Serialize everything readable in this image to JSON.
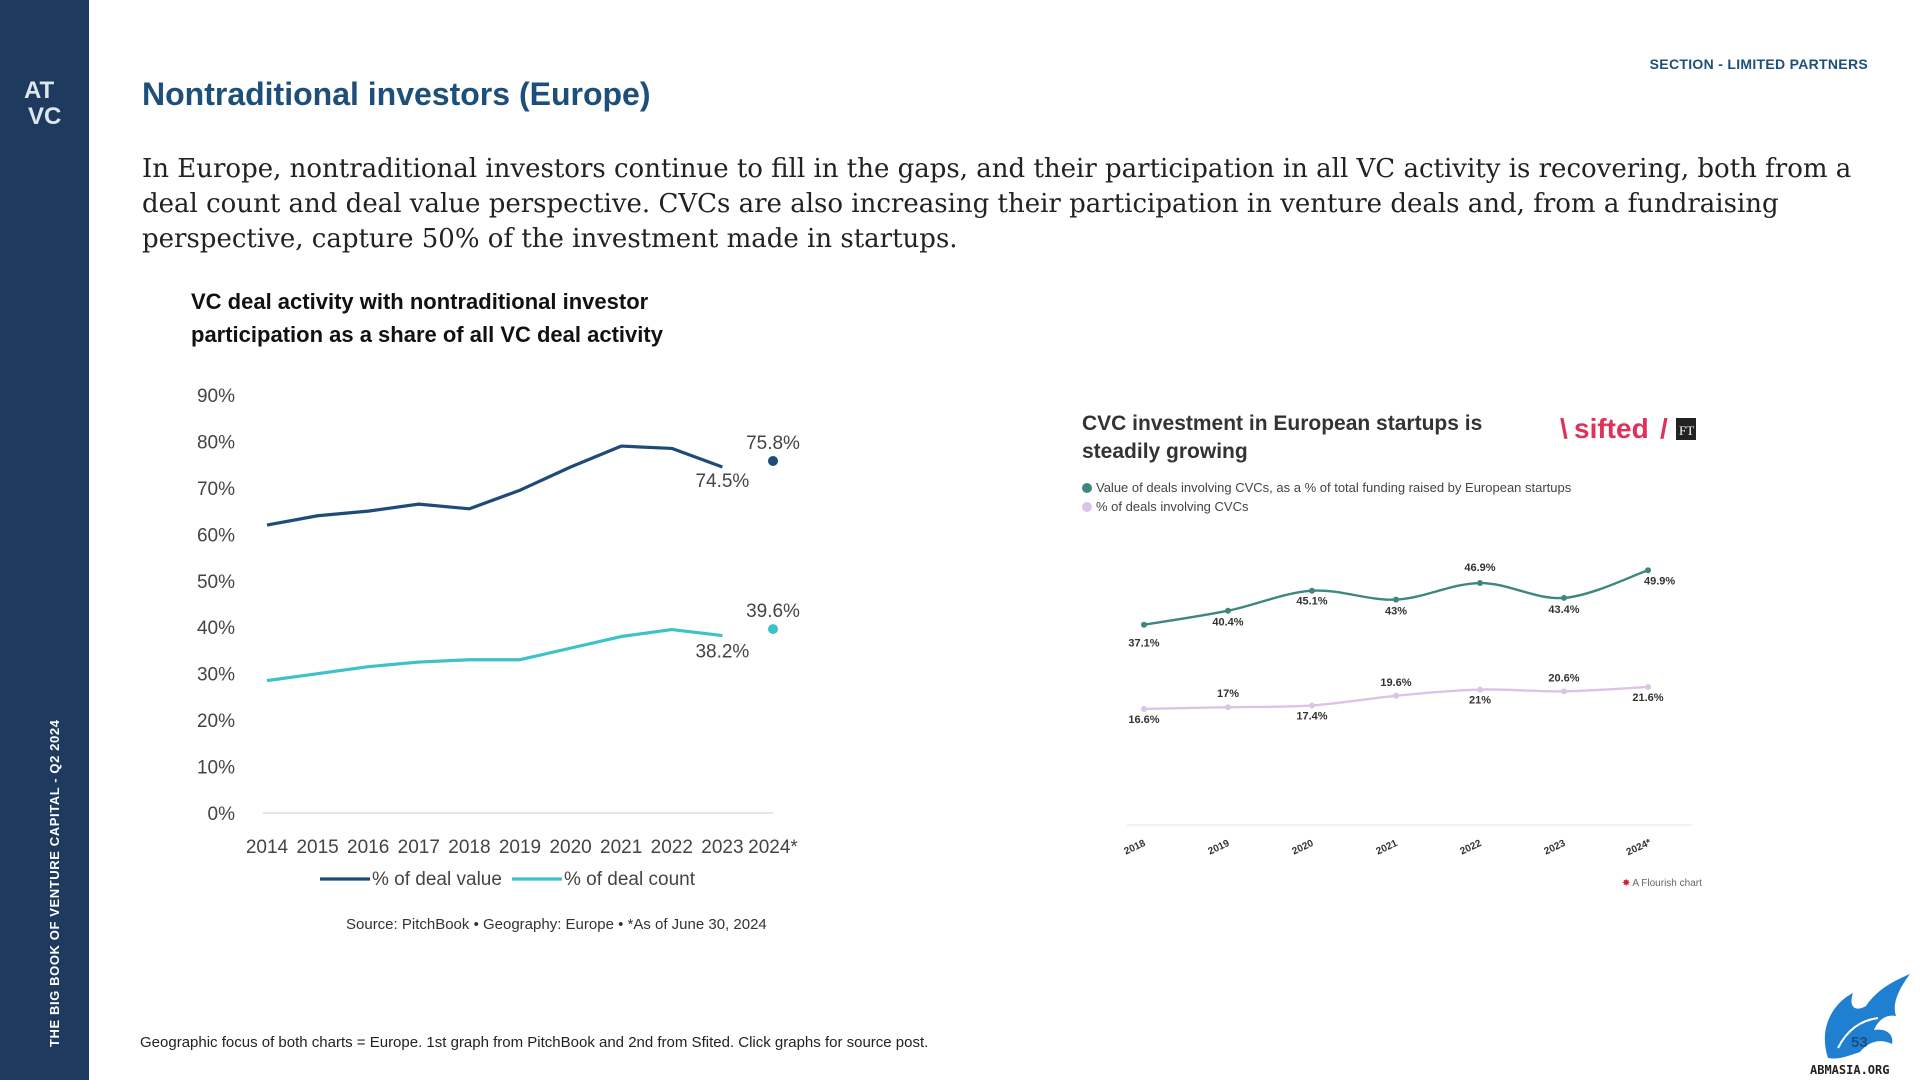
{
  "sidebar": {
    "logo_text": "ATVC",
    "vertical_text": "THE BIG BOOK OF VENTURE CAPITAL - Q2 2024"
  },
  "header": {
    "section_label": "SECTION - LIMITED PARTNERS",
    "title": "Nontraditional investors (Europe)"
  },
  "intro": "In Europe, nontraditional investors continue to fill in the gaps, and their participation in all VC activity is recovering, both from a deal count and deal value perspective. CVCs are also increasing their participation in venture deals and, from a fundraising perspective, capture 50% of the investment made in startups.",
  "colors": {
    "accent": "#1d4f7a",
    "sidebar": "#1e3a5f",
    "deal_value": "#1e4b78",
    "deal_count": "#3dc2c9",
    "cvc_value": "#3f8580",
    "cvc_count": "#dcc3e8"
  },
  "chart_data": [
    {
      "type": "line",
      "title": "VC deal activity with nontraditional investor participation as a share of all VC deal activity",
      "categories": [
        "2014",
        "2015",
        "2016",
        "2017",
        "2018",
        "2019",
        "2020",
        "2021",
        "2022",
        "2023",
        "2024*"
      ],
      "yticks": [
        "0%",
        "10%",
        "20%",
        "30%",
        "40%",
        "50%",
        "60%",
        "70%",
        "80%",
        "90%"
      ],
      "ylim": [
        0,
        90
      ],
      "grid": false,
      "legend_position": "bottom",
      "series": [
        {
          "name": "% of deal value",
          "values": [
            62,
            64,
            65,
            66.5,
            65.5,
            69.5,
            74.5,
            79,
            78.5,
            74.5,
            75.8
          ],
          "annotations": [
            {
              "index": 9,
              "label": "74.5%"
            },
            {
              "index": 10,
              "label": "75.8%"
            }
          ]
        },
        {
          "name": "% of deal count",
          "values": [
            28.5,
            30,
            31.5,
            32.5,
            33,
            33,
            35.5,
            38,
            39.5,
            38.2,
            39.6
          ],
          "annotations": [
            {
              "index": 9,
              "label": "38.2%"
            },
            {
              "index": 10,
              "label": "39.6%"
            }
          ]
        }
      ],
      "source": "Source: PitchBook  •  Geography: Europe  •  *As of June 30, 2024"
    },
    {
      "type": "line",
      "title": "CVC investment in European startups is steadily growing",
      "brand": "sifted",
      "categories": [
        "2018",
        "2019",
        "2020",
        "2021",
        "2022",
        "2023",
        "2024*"
      ],
      "grid": false,
      "legend_position": "top-left",
      "series": [
        {
          "name": "Value of deals involving CVCs, as a % of total funding raised by European startups",
          "values": [
            37.1,
            40.4,
            45.1,
            43,
            46.9,
            43.4,
            49.9
          ],
          "labels": [
            "37.1%",
            "40.4%",
            "45.1%",
            "43%",
            "46.9%",
            "43.4%",
            "49.9%"
          ]
        },
        {
          "name": "% of deals involving CVCs",
          "values": [
            16.6,
            17,
            17.4,
            19.6,
            21,
            20.6,
            21.6
          ],
          "labels": [
            "16.6%",
            "17%",
            "17.4%",
            "19.6%",
            "21%",
            "20.6%",
            "21.6%"
          ]
        }
      ],
      "credit": "A Flourish chart"
    }
  ],
  "footnote": "Geographic focus of both charts = Europe. 1st graph from PitchBook and 2nd from Sfited. Click graphs for source post.",
  "page_number": "53",
  "watermark": "ABMASIA.ORG"
}
